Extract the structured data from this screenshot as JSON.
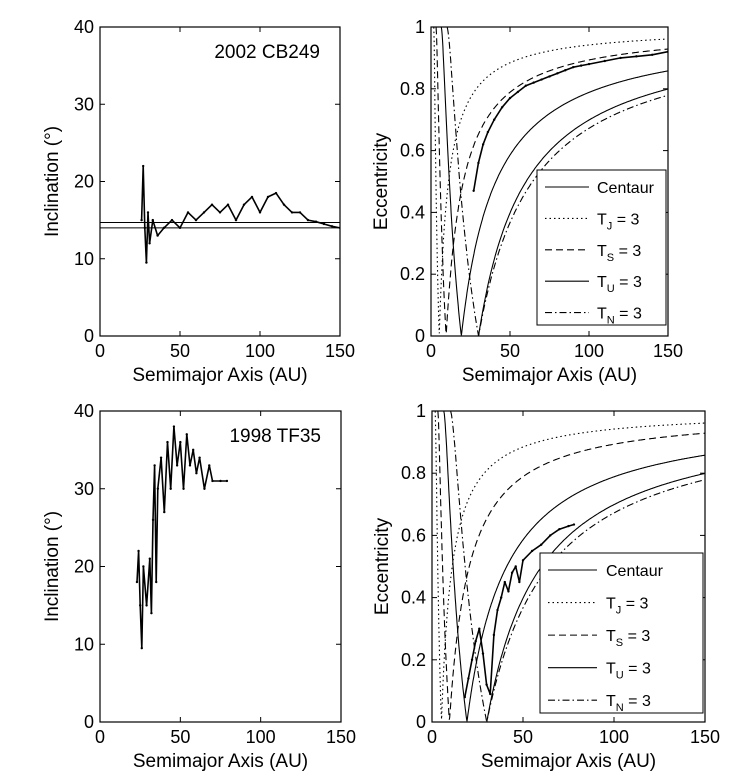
{
  "chart_data": [
    {
      "id": "p1",
      "type": "line",
      "object_name": "2002 CB249",
      "xlabel": "Semimajor Axis (AU)",
      "ylabel": "Inclination (°)",
      "xlim": [
        0,
        150
      ],
      "ylim": [
        0,
        40
      ],
      "xticks": [
        0,
        50,
        100,
        150
      ],
      "yticks": [
        0,
        10,
        20,
        30,
        40
      ],
      "reference_lines_y": [
        14.0,
        14.7
      ],
      "series": [
        {
          "name": "trajectory",
          "points": [
            [
              26,
              15
            ],
            [
              27,
              22
            ],
            [
              28,
              14
            ],
            [
              29,
              9.5
            ],
            [
              30,
              16
            ],
            [
              31,
              12
            ],
            [
              33,
              15
            ],
            [
              36,
              13
            ],
            [
              40,
              14
            ],
            [
              45,
              15
            ],
            [
              50,
              14
            ],
            [
              55,
              16
            ],
            [
              60,
              15
            ],
            [
              65,
              16
            ],
            [
              70,
              17
            ],
            [
              75,
              16
            ],
            [
              80,
              17
            ],
            [
              85,
              15
            ],
            [
              90,
              17
            ],
            [
              95,
              18
            ],
            [
              100,
              16
            ],
            [
              105,
              18
            ],
            [
              110,
              18.5
            ],
            [
              115,
              17
            ],
            [
              120,
              16
            ],
            [
              125,
              16
            ],
            [
              130,
              15
            ],
            [
              135,
              14.8
            ],
            [
              140,
              14.5
            ],
            [
              145,
              14.2
            ],
            [
              150,
              14
            ]
          ]
        }
      ]
    },
    {
      "id": "p2",
      "type": "line",
      "xlabel": "Semimajor Axis (AU)",
      "ylabel": "Eccentricity",
      "xlim": [
        0,
        150
      ],
      "ylim": [
        0,
        1
      ],
      "xticks": [
        0,
        50,
        100,
        150
      ],
      "yticks": [
        0,
        0.2,
        0.4,
        0.6,
        0.8,
        1
      ],
      "ytick_labels": [
        "0",
        "0.2",
        "0.4",
        "0.6",
        "0.8",
        "1"
      ],
      "series": [
        {
          "name": "trajectory",
          "points": [
            [
              27,
              0.47
            ],
            [
              30,
              0.56
            ],
            [
              33,
              0.62
            ],
            [
              36,
              0.66
            ],
            [
              40,
              0.7
            ],
            [
              45,
              0.74
            ],
            [
              50,
              0.77
            ],
            [
              55,
              0.79
            ],
            [
              60,
              0.81
            ],
            [
              65,
              0.82
            ],
            [
              70,
              0.83
            ],
            [
              75,
              0.84
            ],
            [
              80,
              0.85
            ],
            [
              85,
              0.86
            ],
            [
              90,
              0.87
            ],
            [
              95,
              0.875
            ],
            [
              100,
              0.88
            ],
            [
              110,
              0.89
            ],
            [
              120,
              0.9
            ],
            [
              130,
              0.905
            ],
            [
              140,
              0.91
            ],
            [
              150,
              0.92
            ]
          ]
        }
      ],
      "legend": {
        "placement": "lower-right",
        "entries": [
          {
            "label": "Centaur",
            "style": "solid"
          },
          {
            "label": "T",
            "sub": "J",
            "suffix": " = 3",
            "style": "dotted"
          },
          {
            "label": "T",
            "sub": "S",
            "suffix": " = 3",
            "style": "dashed"
          },
          {
            "label": "T",
            "sub": "U",
            "suffix": " = 3",
            "style": "solid"
          },
          {
            "label": "T",
            "sub": "N",
            "suffix": " = 3",
            "style": "dashdot"
          }
        ]
      }
    },
    {
      "id": "p3",
      "type": "line",
      "object_name": "1998 TF35",
      "xlabel": "Semimajor Axis (AU)",
      "ylabel": "Inclination (°)",
      "xlim": [
        0,
        150
      ],
      "ylim": [
        0,
        40
      ],
      "xticks": [
        0,
        50,
        100,
        150
      ],
      "yticks": [
        0,
        10,
        20,
        30,
        40
      ],
      "series": [
        {
          "name": "trajectory",
          "points": [
            [
              23,
              18
            ],
            [
              24,
              22
            ],
            [
              25,
              15
            ],
            [
              26,
              9.5
            ],
            [
              27,
              20
            ],
            [
              29,
              15
            ],
            [
              31,
              21
            ],
            [
              32,
              14
            ],
            [
              33,
              26
            ],
            [
              34,
              33
            ],
            [
              35,
              18
            ],
            [
              36,
              30
            ],
            [
              38,
              34
            ],
            [
              40,
              27
            ],
            [
              42,
              36
            ],
            [
              44,
              30
            ],
            [
              46,
              38
            ],
            [
              48,
              33
            ],
            [
              50,
              36
            ],
            [
              52,
              30
            ],
            [
              54,
              37
            ],
            [
              56,
              33
            ],
            [
              58,
              35
            ],
            [
              60,
              32
            ],
            [
              62,
              34
            ],
            [
              65,
              30
            ],
            [
              68,
              33
            ],
            [
              70,
              31
            ],
            [
              75,
              31
            ],
            [
              79,
              31
            ]
          ]
        }
      ]
    },
    {
      "id": "p4",
      "type": "line",
      "xlabel": "Semimajor Axis (AU)",
      "ylabel": "Eccentricity",
      "xlim": [
        0,
        150
      ],
      "ylim": [
        0,
        1
      ],
      "xticks": [
        0,
        50,
        100,
        150
      ],
      "yticks": [
        0,
        0.2,
        0.4,
        0.6,
        0.8,
        1
      ],
      "ytick_labels": [
        "0",
        "0.2",
        "0.4",
        "0.6",
        "0.8",
        "1"
      ],
      "series": [
        {
          "name": "trajectory",
          "points": [
            [
              18,
              0.08
            ],
            [
              20,
              0.14
            ],
            [
              22,
              0.2
            ],
            [
              24,
              0.26
            ],
            [
              26,
              0.3
            ],
            [
              28,
              0.22
            ],
            [
              30,
              0.12
            ],
            [
              32,
              0.09
            ],
            [
              34,
              0.28
            ],
            [
              36,
              0.36
            ],
            [
              38,
              0.4
            ],
            [
              40,
              0.45
            ],
            [
              42,
              0.42
            ],
            [
              44,
              0.48
            ],
            [
              46,
              0.5
            ],
            [
              48,
              0.45
            ],
            [
              50,
              0.52
            ],
            [
              55,
              0.55
            ],
            [
              60,
              0.57
            ],
            [
              65,
              0.6
            ],
            [
              70,
              0.62
            ],
            [
              75,
              0.63
            ],
            [
              78,
              0.635
            ]
          ]
        }
      ],
      "legend": {
        "placement": "lower-right",
        "entries": [
          {
            "label": "Centaur",
            "style": "solid"
          },
          {
            "label": "T",
            "sub": "J",
            "suffix": " = 3",
            "style": "dotted"
          },
          {
            "label": "T",
            "sub": "S",
            "suffix": " = 3",
            "style": "dashed"
          },
          {
            "label": "T",
            "sub": "U",
            "suffix": " = 3",
            "style": "solid"
          },
          {
            "label": "T",
            "sub": "N",
            "suffix": " = 3",
            "style": "dashdot"
          }
        ]
      }
    }
  ],
  "tisserand_semimajor_axes_au": {
    "J": 5.2,
    "S": 9.58,
    "U": 19.2,
    "N": 30.1
  },
  "centaur_perihelion_au": 30.1
}
